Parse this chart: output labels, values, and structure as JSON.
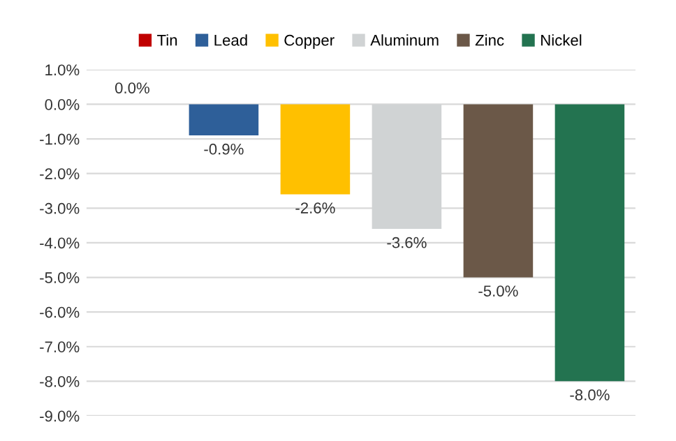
{
  "chart_data": {
    "type": "bar",
    "categories": [
      null,
      null,
      null,
      null,
      null,
      null
    ],
    "series": [
      {
        "name": "Tin",
        "color": "#c00000",
        "values": [
          0.0,
          null,
          null,
          null,
          null,
          null
        ],
        "value_labels": [
          "0.0%",
          null,
          null,
          null,
          null,
          null
        ]
      },
      {
        "name": "Lead",
        "color": "#2e5f99",
        "values": [
          null,
          -0.9,
          null,
          null,
          null,
          null
        ],
        "value_labels": [
          null,
          "-0.9%",
          null,
          null,
          null,
          null
        ]
      },
      {
        "name": "Copper",
        "color": "#ffc000",
        "values": [
          null,
          null,
          -2.6,
          null,
          null,
          null
        ],
        "value_labels": [
          null,
          null,
          "-2.6%",
          null,
          null,
          null
        ]
      },
      {
        "name": "Aluminum",
        "color": "#d0d3d4",
        "values": [
          null,
          null,
          null,
          -3.6,
          null,
          null
        ],
        "value_labels": [
          null,
          null,
          null,
          "-3.6%",
          null,
          null
        ]
      },
      {
        "name": "Zinc",
        "color": "#6b5848",
        "values": [
          null,
          null,
          null,
          null,
          -5.0,
          null
        ],
        "value_labels": [
          null,
          null,
          null,
          null,
          "-5.0%",
          null
        ]
      },
      {
        "name": "Nickel",
        "color": "#237350",
        "values": [
          null,
          null,
          null,
          null,
          null,
          -8.0
        ],
        "value_labels": [
          null,
          null,
          null,
          null,
          null,
          "-8.0%"
        ]
      }
    ],
    "ylim": [
      -9,
      1
    ],
    "yticks": [
      {
        "value": 1,
        "label": "1.0%"
      },
      {
        "value": 0,
        "label": "0.0%"
      },
      {
        "value": -1,
        "label": "-1.0%"
      },
      {
        "value": -2,
        "label": "-2.0%"
      },
      {
        "value": -3,
        "label": "-3.0%"
      },
      {
        "value": -4,
        "label": "-4.0%"
      },
      {
        "value": -5,
        "label": "-5.0%"
      },
      {
        "value": -6,
        "label": "-6.0%"
      },
      {
        "value": -7,
        "label": "-7.0%"
      },
      {
        "value": -8,
        "label": "-8.0%"
      },
      {
        "value": -9,
        "label": "-9.0%"
      }
    ],
    "grid": "y",
    "legend": "top",
    "tick_labels": "y"
  }
}
